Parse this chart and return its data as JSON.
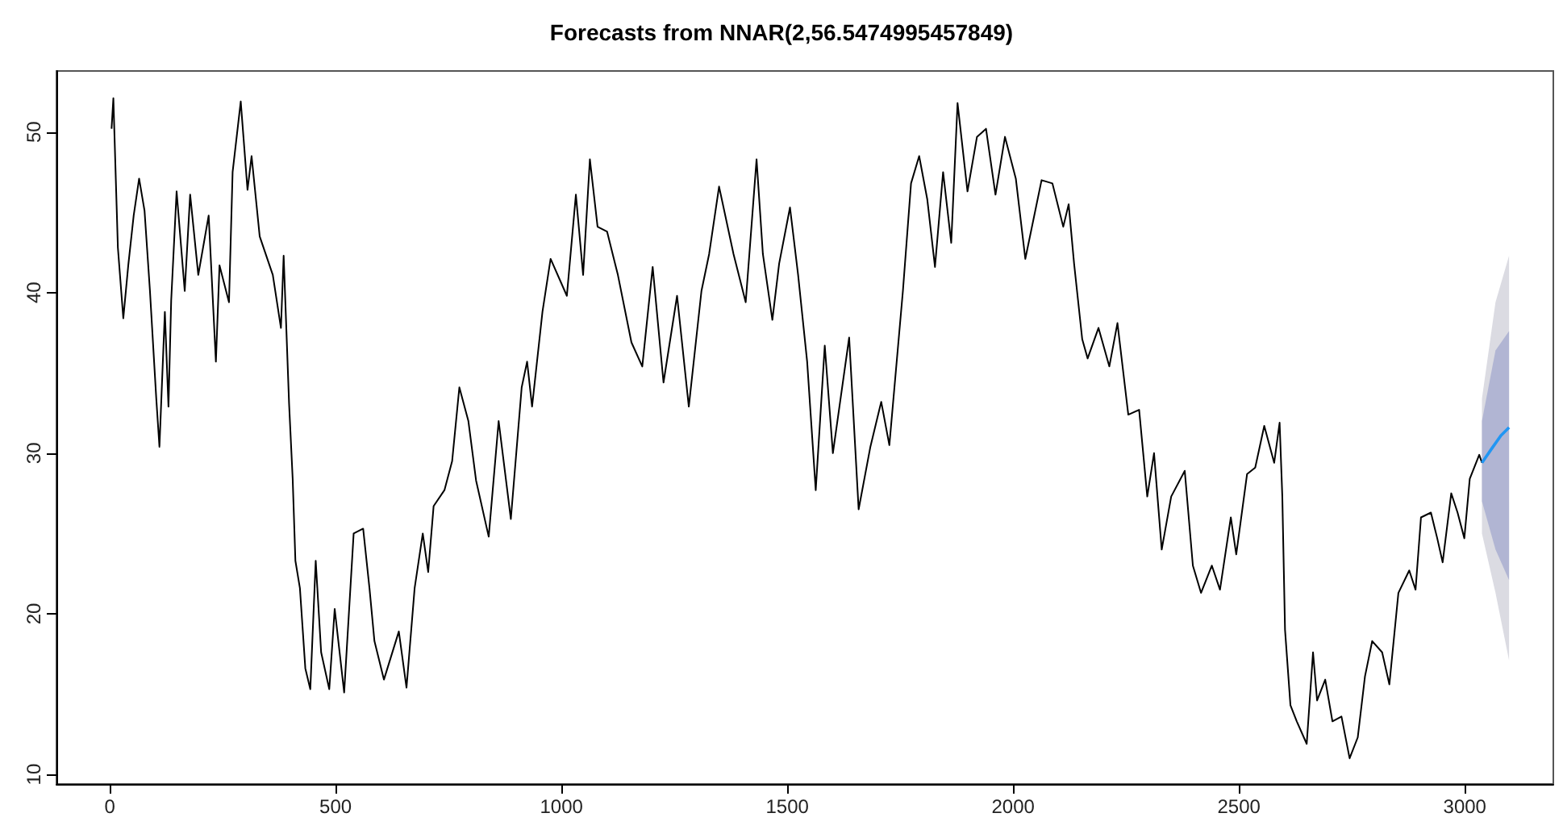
{
  "chart_data": {
    "type": "line",
    "title": "Forecasts from NNAR(2,56.5474995457849)",
    "xlim": [
      -118,
      3196
    ],
    "xticks": [
      0,
      500,
      1000,
      1500,
      2000,
      2500,
      3000
    ],
    "ylim": [
      9.4,
      53.8
    ],
    "yticks": [
      10,
      20,
      30,
      40,
      50
    ],
    "grid": false,
    "marker": "none",
    "line_style": "solid",
    "series": [
      {
        "color": "#000000",
        "x": [
          4,
          8,
          18,
          30,
          41,
          53,
          65,
          77,
          89,
          103,
          110,
          122,
          130,
          136,
          148,
          166,
          178,
          196,
          219,
          235,
          243,
          264,
          272,
          290,
          305,
          314,
          332,
          361,
          379,
          385,
          397,
          405,
          411,
          421,
          433,
          444,
          456,
          468,
          486,
          498,
          519,
          540,
          561,
          575,
          586,
          607,
          640,
          657,
          675,
          693,
          705,
          717,
          741,
          758,
          774,
          794,
          811,
          839,
          861,
          888,
          912,
          924,
          935,
          958,
          976,
          1012,
          1032,
          1048,
          1063,
          1080,
          1101,
          1125,
          1155,
          1179,
          1202,
          1226,
          1256,
          1282,
          1310,
          1327,
          1349,
          1381,
          1408,
          1432,
          1446,
          1467,
          1482,
          1506,
          1524,
          1544,
          1563,
          1583,
          1601,
          1637,
          1658,
          1684,
          1708,
          1726,
          1756,
          1774,
          1792,
          1810,
          1827,
          1845,
          1863,
          1877,
          1899,
          1920,
          1940,
          1961,
          1982,
          2006,
          2027,
          2063,
          2087,
          2111,
          2123,
          2135,
          2153,
          2165,
          2189,
          2213,
          2231,
          2255,
          2279,
          2297,
          2312,
          2329,
          2350,
          2380,
          2398,
          2416,
          2440,
          2458,
          2482,
          2494,
          2518,
          2536,
          2556,
          2578,
          2590,
          2596,
          2602,
          2614,
          2628,
          2650,
          2664,
          2673,
          2691,
          2707,
          2727,
          2745,
          2763,
          2779,
          2795,
          2817,
          2833,
          2853,
          2877,
          2891,
          2903,
          2925,
          2939,
          2951,
          2970,
          2984,
          2999,
          3011,
          3032,
          3038
        ],
        "values": [
          50.2,
          52.1,
          42.8,
          38.4,
          41.7,
          44.8,
          47.1,
          45.1,
          40.1,
          33.4,
          30.4,
          38.8,
          32.9,
          39.5,
          46.3,
          40.1,
          46.1,
          41.1,
          44.8,
          35.7,
          41.7,
          39.4,
          47.5,
          51.9,
          46.4,
          48.5,
          43.5,
          41.1,
          37.8,
          42.3,
          33.1,
          28.4,
          23.3,
          21.6,
          16.6,
          15.3,
          23.3,
          17.6,
          15.3,
          20.3,
          15.1,
          25.0,
          25.3,
          21.6,
          18.3,
          15.9,
          18.9,
          15.4,
          21.6,
          25.0,
          22.6,
          26.7,
          27.7,
          29.5,
          34.1,
          32.0,
          28.3,
          24.8,
          32.0,
          25.9,
          34.1,
          35.7,
          32.9,
          38.8,
          42.1,
          39.8,
          46.1,
          41.1,
          48.3,
          44.1,
          43.8,
          41.1,
          36.9,
          35.4,
          41.6,
          34.4,
          39.8,
          32.9,
          40.1,
          42.4,
          46.6,
          42.4,
          39.4,
          48.3,
          42.4,
          38.3,
          41.8,
          45.3,
          41.1,
          35.7,
          27.7,
          36.7,
          30.0,
          37.2,
          26.5,
          30.4,
          33.2,
          30.5,
          40.1,
          46.8,
          48.5,
          45.8,
          41.6,
          47.5,
          43.1,
          51.8,
          46.3,
          49.7,
          50.2,
          46.1,
          49.7,
          47.1,
          42.1,
          47.0,
          46.8,
          44.1,
          45.5,
          41.8,
          37.1,
          35.9,
          37.8,
          35.4,
          38.1,
          32.4,
          32.7,
          27.3,
          30.0,
          24.0,
          27.3,
          28.9,
          23.0,
          21.3,
          23.0,
          21.5,
          26.0,
          23.7,
          28.7,
          29.1,
          31.7,
          29.4,
          31.9,
          27.3,
          19.0,
          14.3,
          13.3,
          11.9,
          17.6,
          14.6,
          15.9,
          13.3,
          13.6,
          11.0,
          12.3,
          16.1,
          18.3,
          17.6,
          15.6,
          21.3,
          22.7,
          21.5,
          26.0,
          26.3,
          24.7,
          23.2,
          27.5,
          26.3,
          24.7,
          28.4,
          29.9,
          29.4
        ]
      },
      {
        "color": "#dbdbe2",
        "x": [
          3038,
          3068,
          3098
        ],
        "values": [
          null,
          null,
          null
        ],
        "lower": [
          25.0,
          21.3,
          17.1
        ],
        "upper": [
          33.4,
          39.4,
          42.3
        ]
      },
      {
        "color": "#b1b5d3",
        "x": [
          3038,
          3068,
          3098
        ],
        "values": [
          null,
          null,
          null
        ],
        "lower": [
          27.0,
          24.0,
          22.1
        ],
        "upper": [
          32.0,
          36.4,
          37.6
        ]
      },
      {
        "color": "#2196f3",
        "x": [
          3038,
          3060,
          3080,
          3098
        ],
        "values": [
          29.4,
          30.3,
          31.1,
          31.6
        ]
      }
    ]
  }
}
